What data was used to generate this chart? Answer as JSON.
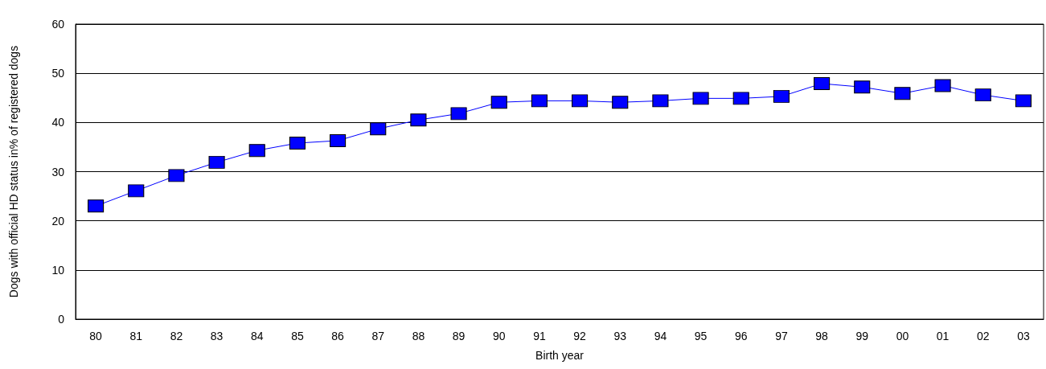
{
  "chart_data": {
    "type": "line",
    "xlabel": "Birth year",
    "ylabel": "Dogs with official HD status in% of registered dogs",
    "categories": [
      "80",
      "81",
      "82",
      "83",
      "84",
      "85",
      "86",
      "87",
      "88",
      "89",
      "90",
      "91",
      "92",
      "93",
      "94",
      "95",
      "96",
      "97",
      "98",
      "99",
      "00",
      "01",
      "02",
      "03"
    ],
    "series": [
      {
        "color": "#0000ff",
        "values": [
          23.0,
          26.1,
          29.2,
          31.9,
          34.3,
          35.8,
          36.3,
          38.7,
          40.5,
          41.8,
          44.1,
          44.4,
          44.4,
          44.1,
          44.4,
          44.9,
          44.9,
          45.3,
          47.9,
          47.2,
          45.9,
          47.5,
          45.6,
          44.4
        ]
      }
    ],
    "ylim": [
      0,
      60
    ],
    "yticks": [
      0,
      10,
      20,
      30,
      40,
      50,
      60
    ],
    "grid": "y",
    "marker": "square",
    "line_style": "solid"
  }
}
